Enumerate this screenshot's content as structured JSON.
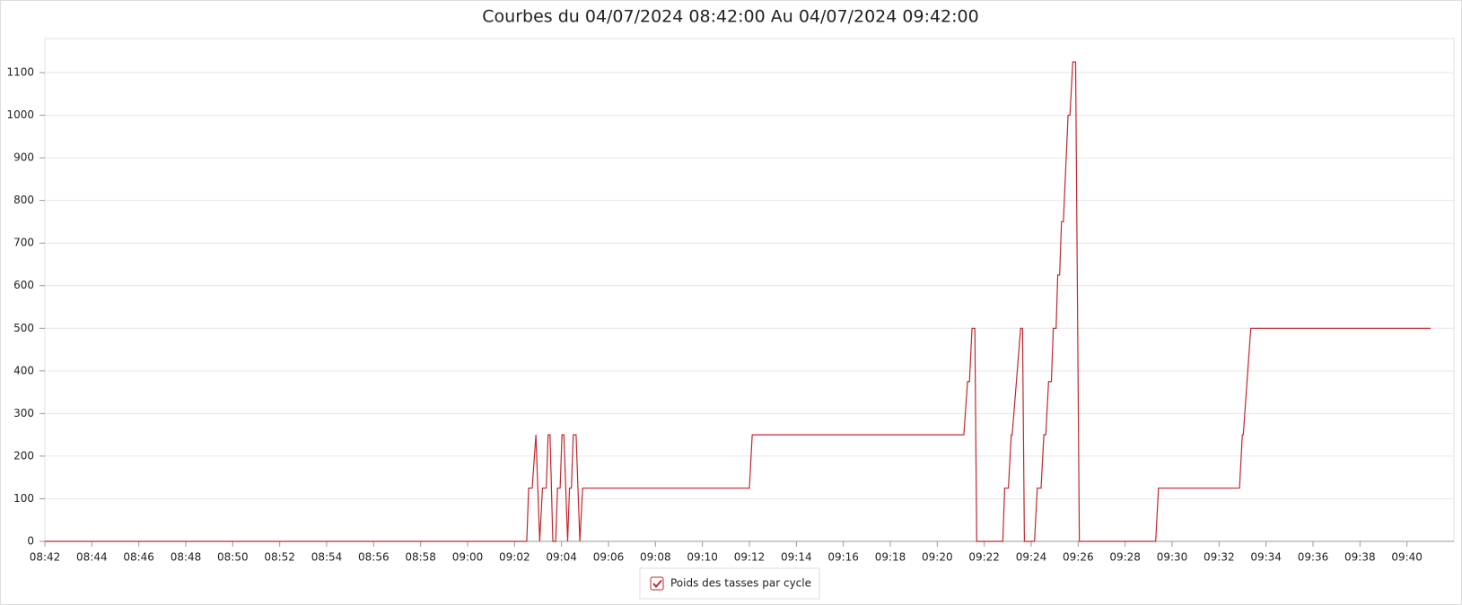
{
  "chart_data": {
    "type": "line",
    "title": "Courbes du  04/07/2024 08:42:00 Au 04/07/2024 09:42:00",
    "x": [
      0,
      20.52,
      20.6,
      20.75,
      20.91,
      21.07,
      21.19,
      21.35,
      21.43,
      21.51,
      21.63,
      21.75,
      21.83,
      21.94,
      22.02,
      22.1,
      22.26,
      22.34,
      22.42,
      22.5,
      22.62,
      22.78,
      22.9,
      30.0,
      30.12,
      39.13,
      39.29,
      39.37,
      39.48,
      39.6,
      39.68,
      40.79,
      40.87,
      41.03,
      41.15,
      41.19,
      41.55,
      41.63,
      41.71,
      42.14,
      42.26,
      42.42,
      42.54,
      42.62,
      42.74,
      42.86,
      42.94,
      43.06,
      43.13,
      43.21,
      43.29,
      43.37,
      43.57,
      43.65,
      43.77,
      43.89,
      44.05,
      47.3,
      47.42,
      50.87,
      50.99,
      51.03,
      51.19,
      51.35,
      59.01
    ],
    "series": [
      {
        "name": "Poids des tasses par cycle",
        "color": "#c0272d",
        "values": [
          0,
          0,
          125,
          125,
          250,
          0,
          125,
          125,
          250,
          250,
          0,
          0,
          125,
          125,
          250,
          250,
          0,
          125,
          125,
          250,
          250,
          0,
          125,
          125,
          250,
          250,
          375,
          375,
          500,
          500,
          0,
          0,
          125,
          125,
          250,
          250,
          500,
          500,
          0,
          0,
          125,
          125,
          250,
          250,
          375,
          375,
          500,
          500,
          625,
          625,
          750,
          750,
          1000,
          1000,
          1125,
          1125,
          0,
          0,
          125,
          125,
          250,
          250,
          375,
          500,
          500
        ]
      }
    ],
    "xlim": [
      0,
      60
    ],
    "xticks": [
      {
        "value": 0,
        "label": "08:42"
      },
      {
        "value": 2,
        "label": "08:44"
      },
      {
        "value": 4,
        "label": "08:46"
      },
      {
        "value": 6,
        "label": "08:48"
      },
      {
        "value": 8,
        "label": "08:50"
      },
      {
        "value": 10,
        "label": "08:52"
      },
      {
        "value": 12,
        "label": "08:54"
      },
      {
        "value": 14,
        "label": "08:56"
      },
      {
        "value": 16,
        "label": "08:58"
      },
      {
        "value": 18,
        "label": "09:00"
      },
      {
        "value": 20,
        "label": "09:02"
      },
      {
        "value": 22,
        "label": "09:04"
      },
      {
        "value": 24,
        "label": "09:06"
      },
      {
        "value": 26,
        "label": "09:08"
      },
      {
        "value": 28,
        "label": "09:10"
      },
      {
        "value": 30,
        "label": "09:12"
      },
      {
        "value": 32,
        "label": "09:14"
      },
      {
        "value": 34,
        "label": "09:16"
      },
      {
        "value": 36,
        "label": "09:18"
      },
      {
        "value": 38,
        "label": "09:20"
      },
      {
        "value": 40,
        "label": "09:22"
      },
      {
        "value": 42,
        "label": "09:24"
      },
      {
        "value": 44,
        "label": "09:26"
      },
      {
        "value": 46,
        "label": "09:28"
      },
      {
        "value": 48,
        "label": "09:30"
      },
      {
        "value": 50,
        "label": "09:32"
      },
      {
        "value": 52,
        "label": "09:34"
      },
      {
        "value": 54,
        "label": "09:36"
      },
      {
        "value": 56,
        "label": "09:38"
      },
      {
        "value": 58,
        "label": "09:40"
      }
    ],
    "ylim": [
      0,
      1180
    ],
    "yticks": [
      0,
      100,
      200,
      300,
      400,
      500,
      600,
      700,
      800,
      900,
      1000,
      1100
    ],
    "grid": true
  }
}
